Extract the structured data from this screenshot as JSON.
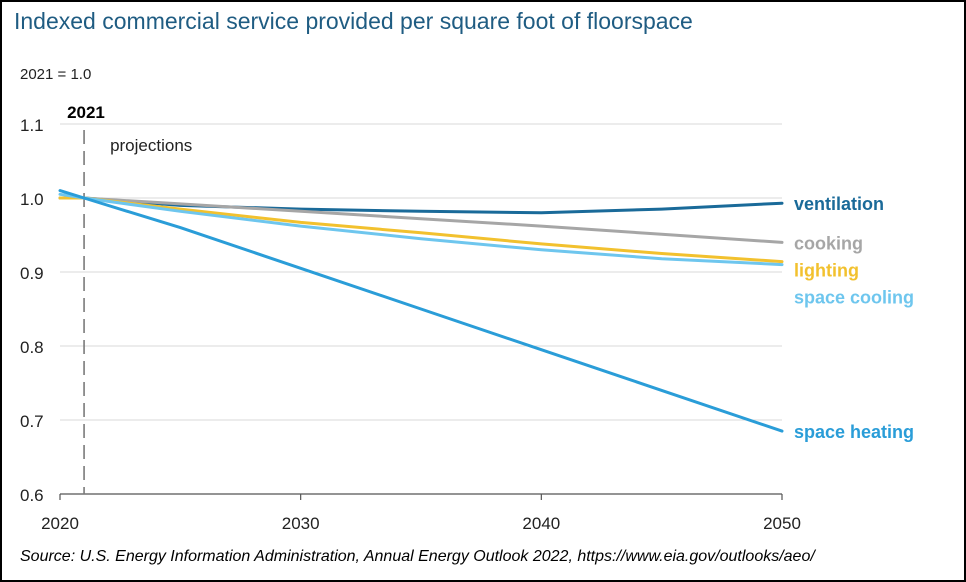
{
  "title": "Indexed commercial service provided per square foot of floorspace",
  "unit_label": "2021 = 1.0",
  "source": "Source: U.S. Energy Information Administration, Annual Energy Outlook 2022, https://www.eia.gov/outlooks/aeo/",
  "chart_data": {
    "type": "line",
    "title": "Indexed commercial service provided per square foot of floorspace",
    "ylabel": "2021 = 1.0",
    "xlim": [
      2020,
      2050
    ],
    "ylim": [
      0.6,
      1.1
    ],
    "x_ticks": [
      2020,
      2030,
      2040,
      2050
    ],
    "y_ticks": [
      0.6,
      0.7,
      0.8,
      0.9,
      1.0,
      1.1
    ],
    "grid": "horizontal",
    "legend": "line-end labels",
    "annotations": [
      {
        "label": "2021",
        "x": 2021
      },
      {
        "label": "projections"
      }
    ],
    "series": [
      {
        "name": "ventilation",
        "color": "#1a6a99",
        "x": [
          2020,
          2021,
          2025,
          2030,
          2035,
          2040,
          2045,
          2050
        ],
        "y": [
          1.0,
          1.0,
          0.99,
          0.985,
          0.982,
          0.98,
          0.985,
          0.993
        ]
      },
      {
        "name": "cooking",
        "color": "#a6a6a6",
        "x": [
          2020,
          2021,
          2025,
          2030,
          2035,
          2040,
          2045,
          2050
        ],
        "y": [
          1.0,
          1.0,
          0.992,
          0.982,
          0.972,
          0.962,
          0.951,
          0.94
        ]
      },
      {
        "name": "lighting",
        "color": "#f2c12e",
        "x": [
          2020,
          2021,
          2025,
          2030,
          2035,
          2040,
          2045,
          2050
        ],
        "y": [
          1.0,
          1.0,
          0.985,
          0.967,
          0.953,
          0.938,
          0.925,
          0.914
        ]
      },
      {
        "name": "space cooling",
        "color": "#6ec6ee",
        "x": [
          2020,
          2021,
          2025,
          2030,
          2035,
          2040,
          2045,
          2050
        ],
        "y": [
          1.005,
          1.0,
          0.982,
          0.962,
          0.945,
          0.93,
          0.918,
          0.91
        ]
      },
      {
        "name": "space heating",
        "color": "#2a9dd8",
        "x": [
          2020,
          2021,
          2025,
          2030,
          2035,
          2040,
          2045,
          2050
        ],
        "y": [
          1.01,
          1.0,
          0.96,
          0.905,
          0.85,
          0.795,
          0.74,
          0.685
        ]
      }
    ]
  }
}
